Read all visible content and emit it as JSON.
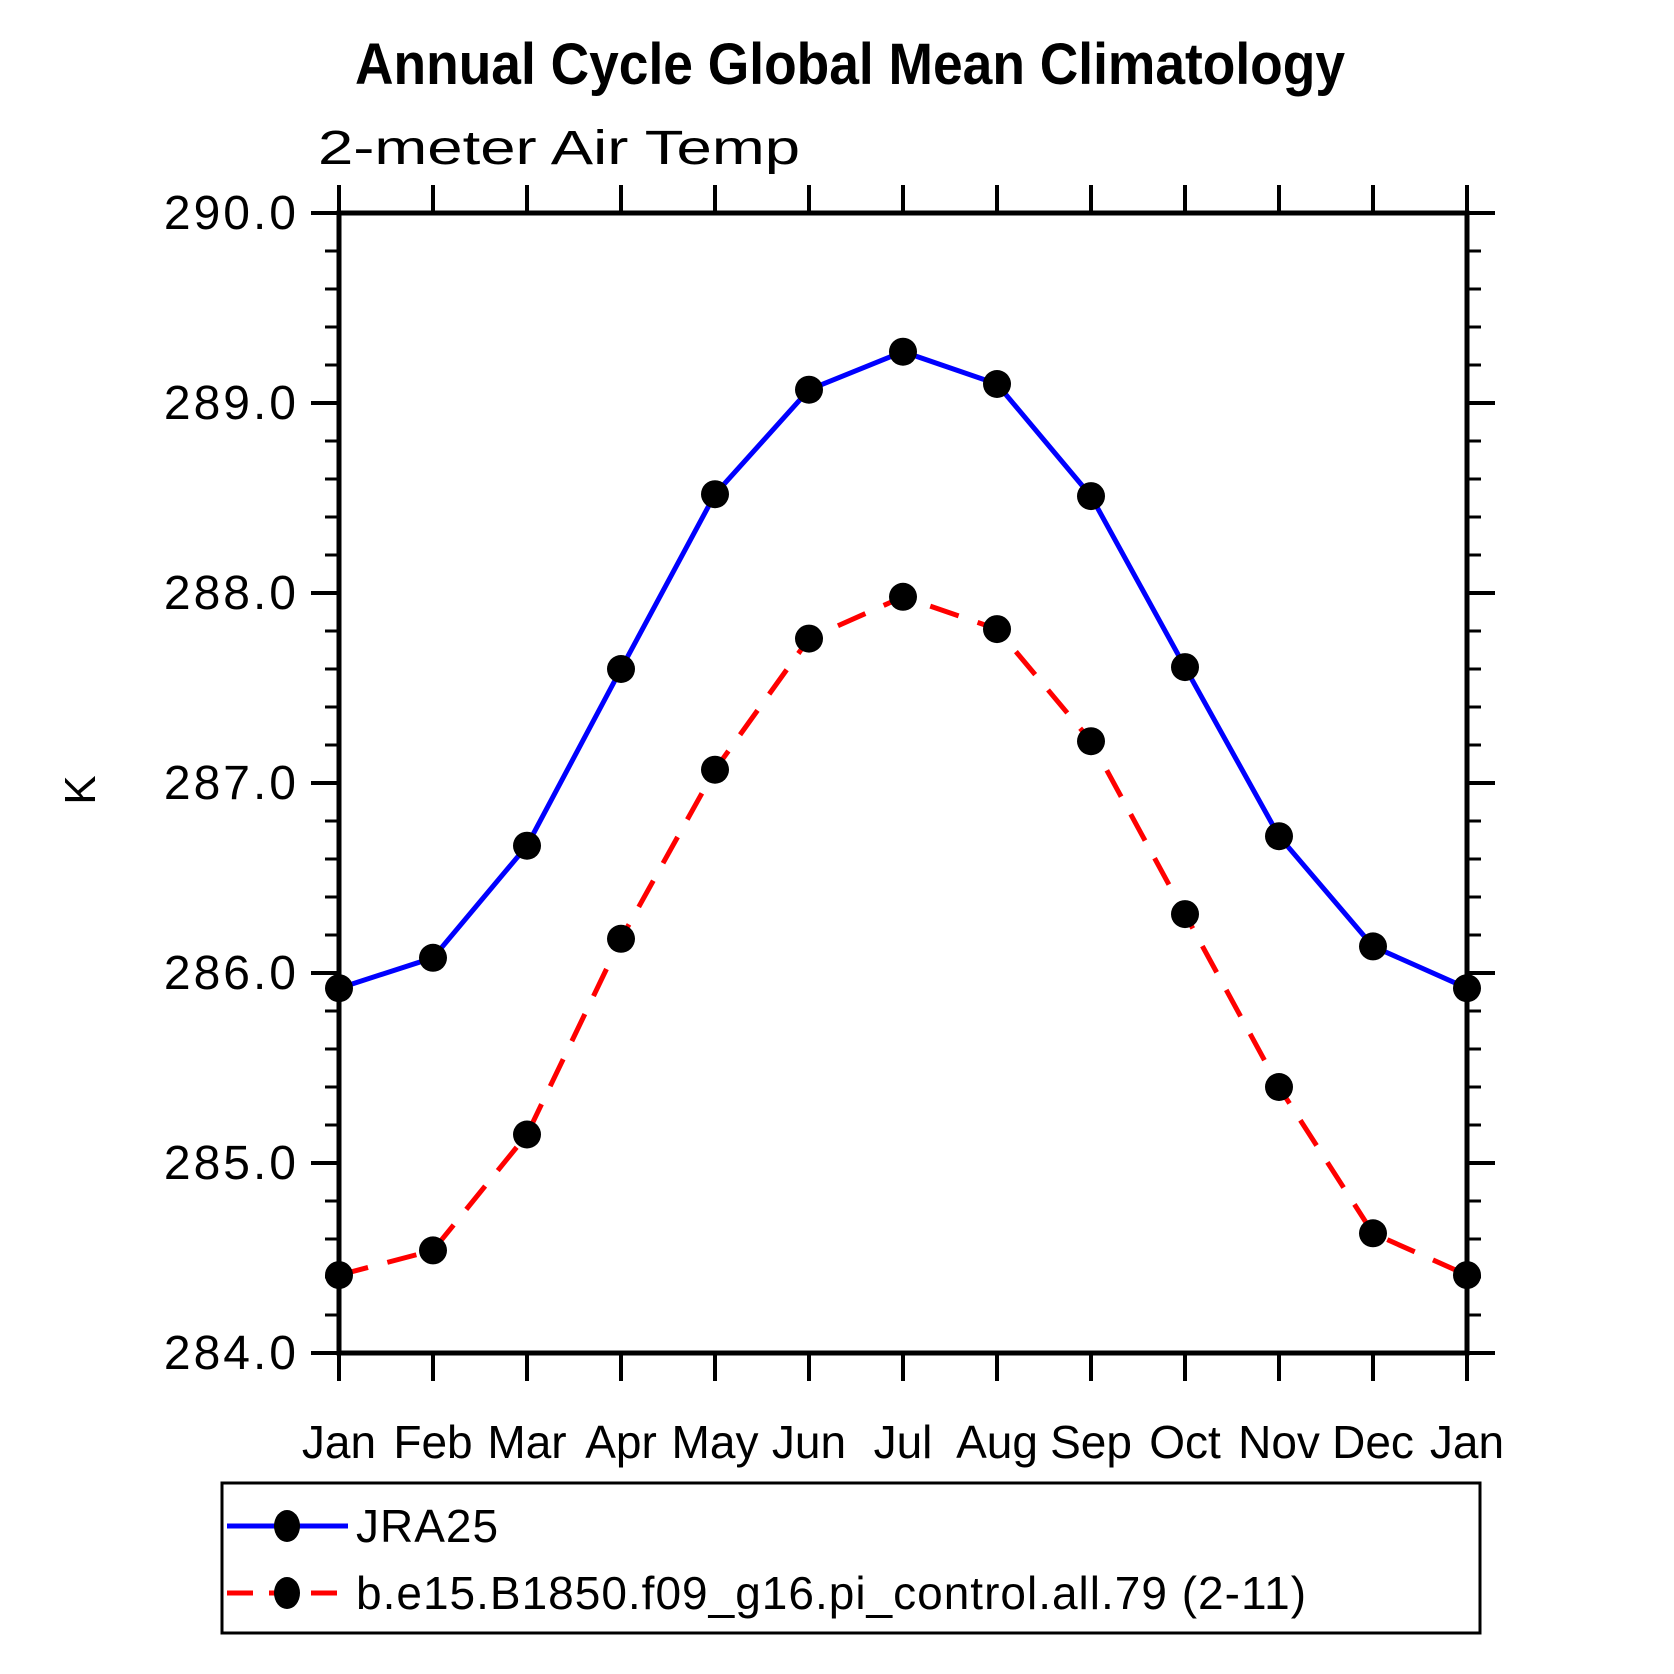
{
  "page": {
    "title": "Annual Cycle Global Mean Climatology",
    "subtitle": "2-meter Air Temp"
  },
  "chart_data": {
    "type": "line",
    "title": "Annual Cycle Global Mean Climatology",
    "subtitle": "2-meter Air Temp",
    "xlabel": "",
    "ylabel": "K",
    "categories": [
      "Jan",
      "Feb",
      "Mar",
      "Apr",
      "May",
      "Jun",
      "Jul",
      "Aug",
      "Sep",
      "Oct",
      "Nov",
      "Dec",
      "Jan"
    ],
    "ylim": [
      284.0,
      290.0
    ],
    "y_major_step": 1.0,
    "y_minor_step": 0.2,
    "y_tick_labels": [
      "284.0",
      "285.0",
      "286.0",
      "287.0",
      "288.0",
      "289.0",
      "290.0"
    ],
    "grid": false,
    "legend_position": "bottom",
    "axis_color": "#000000",
    "series": [
      {
        "name": "JRA25",
        "color": "#0000ff",
        "style": "solid",
        "marker": "filled-circle",
        "marker_color": "#000000",
        "values": [
          285.92,
          286.08,
          286.67,
          287.6,
          288.52,
          289.07,
          289.27,
          289.1,
          288.51,
          287.61,
          286.72,
          286.14,
          285.92
        ]
      },
      {
        "name": "b.e15.B1850.f09_g16.pi_control.all.79 (2-11)",
        "color": "#ff0000",
        "style": "dashed",
        "marker": "filled-circle",
        "marker_color": "#000000",
        "values": [
          284.41,
          284.54,
          285.15,
          286.18,
          287.07,
          287.76,
          287.98,
          287.81,
          287.22,
          286.31,
          285.4,
          284.63,
          284.41
        ]
      }
    ]
  }
}
